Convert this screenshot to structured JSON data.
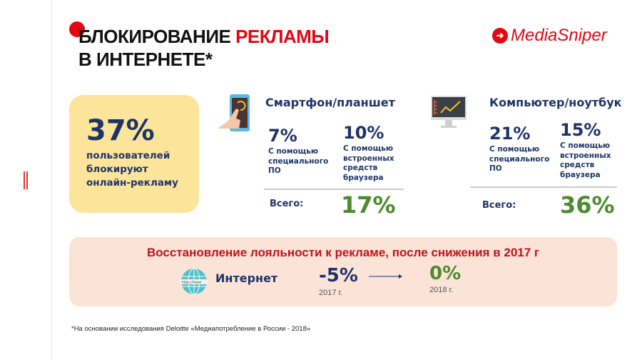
{
  "header": {
    "title_part1": "БЛОКИРОВАНИЕ ",
    "title_part2": "РЕКЛАМЫ",
    "title_line2": "В ИНТЕРНЕТЕ*",
    "logo": "MediaSniper"
  },
  "summary": {
    "value": "37%",
    "desc_lines": [
      "пользователей",
      "блокируют",
      "онлайн-рекламу"
    ]
  },
  "smartphone": {
    "title": "Смартфон/планшет",
    "items": [
      {
        "value": "7%",
        "desc_lines": [
          "С помощью",
          "специального",
          "ПО"
        ]
      },
      {
        "value": "10%",
        "desc_lines": [
          "С помощью",
          "встроенных",
          "средств",
          "браузера"
        ]
      }
    ],
    "total_label": "Всего:",
    "total": "17%"
  },
  "computer": {
    "title": "Компьютер/ноутбук",
    "items": [
      {
        "value": "21%",
        "desc_lines": [
          "С помощью",
          "специального",
          "ПО"
        ]
      },
      {
        "value": "15%",
        "desc_lines": [
          "С помощью",
          "встроенных",
          "средств",
          "браузера"
        ]
      }
    ],
    "total_label": "Всего:",
    "total": "36%"
  },
  "loyalty": {
    "title": "Восстановление лояльности к рекламе, после снижения в 2017 г",
    "channel": "Интернет",
    "globe_text": "https://www",
    "from_value": "-5%",
    "from_year": "2017 г.",
    "to_value": "0%",
    "to_year": "2018 г."
  },
  "footnote": "*На основании исследования Deloitte «Медиапотребление в России - 2018»",
  "colors": {
    "accent": "#e30613",
    "navy": "#1e3468",
    "green": "#4e8a2e",
    "yellow": "#fce49a",
    "pink": "#fbe3d8"
  }
}
